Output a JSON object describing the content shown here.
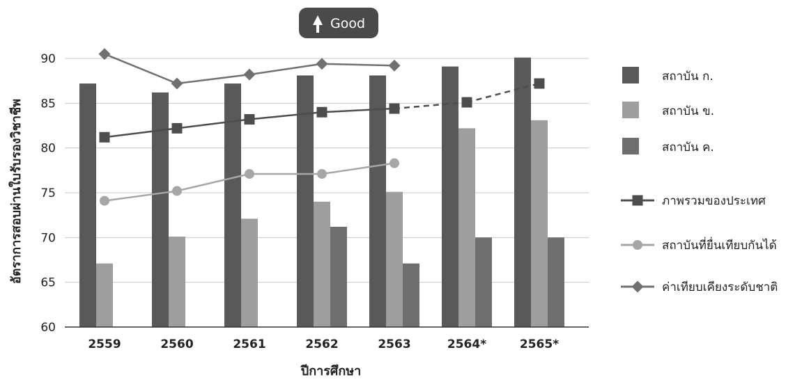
{
  "badge": {
    "label": "Good",
    "icon": "arrow-up-icon",
    "color": "#4a4a4a"
  },
  "chart_data": {
    "type": "bar",
    "title": "",
    "xlabel": "ปีการศึกษา",
    "ylabel": "อัตราการสอบผ่านใบรับรองวิชาชีพ",
    "ylim": [
      60,
      90
    ],
    "yticks": [
      60,
      65,
      70,
      75,
      80,
      85,
      90
    ],
    "categories": [
      "2559",
      "2560",
      "2561",
      "2562",
      "2563",
      "2564*",
      "2565*"
    ],
    "grid": true,
    "legend_position": "right",
    "bar_series": [
      {
        "name": "สถาบัน ก.",
        "color": "#595959",
        "values": [
          87.2,
          86.2,
          87.2,
          88.1,
          88.1,
          89.1,
          90.1
        ]
      },
      {
        "name": "สถาบัน ข.",
        "color": "#9e9e9e",
        "values": [
          67.1,
          70.1,
          72.1,
          74.0,
          75.1,
          82.2,
          83.1
        ]
      },
      {
        "name": "สถาบัน ค.",
        "color": "#6e6e6e",
        "values": [
          null,
          null,
          null,
          71.2,
          67.1,
          70.0,
          70.0
        ]
      }
    ],
    "line_series": [
      {
        "name": "ภาพรวมของประเทศ",
        "marker": "square",
        "color": "#4d4d4d",
        "values": [
          81.2,
          82.2,
          83.2,
          84.0,
          84.4,
          85.1,
          87.2
        ],
        "projected_from_index": 4
      },
      {
        "name": "สถาบันที่ยื่นเทียบกันได้",
        "marker": "circle",
        "color": "#a6a6a6",
        "values": [
          74.1,
          75.2,
          77.1,
          77.1,
          78.3,
          null,
          null
        ]
      },
      {
        "name": "ค่าเทียบเคียงระดับชาติ",
        "marker": "diamond",
        "color": "#707070",
        "values": [
          90.5,
          87.2,
          88.2,
          89.4,
          89.2,
          null,
          null
        ]
      }
    ]
  }
}
